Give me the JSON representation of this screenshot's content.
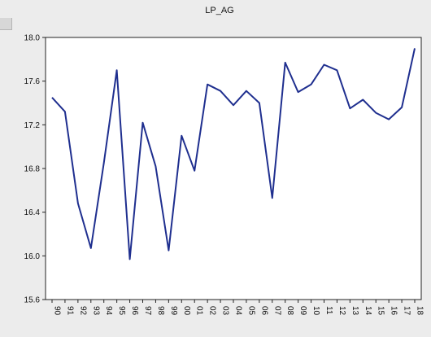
{
  "chart_data": {
    "type": "line",
    "title": "LP_AG",
    "xlabel": "",
    "ylabel": "",
    "categories": [
      "90",
      "91",
      "92",
      "93",
      "94",
      "95",
      "96",
      "97",
      "98",
      "99",
      "00",
      "01",
      "02",
      "03",
      "04",
      "05",
      "06",
      "07",
      "08",
      "09",
      "10",
      "11",
      "12",
      "13",
      "14",
      "15",
      "16",
      "17",
      "18"
    ],
    "series": [
      {
        "values": [
          17.45,
          17.32,
          16.48,
          16.07,
          16.85,
          17.7,
          15.97,
          17.22,
          16.82,
          16.05,
          17.1,
          16.78,
          17.57,
          17.51,
          17.38,
          17.51,
          17.4,
          16.53,
          17.77,
          17.5,
          17.57,
          17.75,
          17.7,
          17.35,
          17.43,
          17.31,
          17.25,
          17.36,
          17.9
        ],
        "color": "#1f2f8f"
      }
    ],
    "ylim": [
      15.6,
      18.0
    ],
    "yticks": [
      "15.6",
      "16.0",
      "16.4",
      "16.8",
      "17.2",
      "17.6",
      "18.0"
    ],
    "grid": false,
    "legend": "none"
  }
}
